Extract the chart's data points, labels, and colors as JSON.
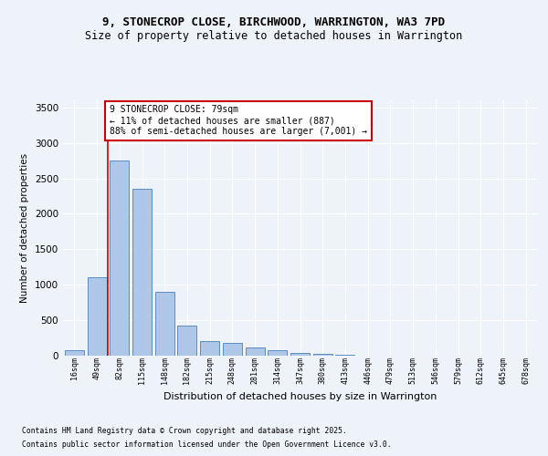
{
  "title1": "9, STONECROP CLOSE, BIRCHWOOD, WARRINGTON, WA3 7PD",
  "title2": "Size of property relative to detached houses in Warrington",
  "xlabel": "Distribution of detached houses by size in Warrington",
  "ylabel": "Number of detached properties",
  "categories": [
    "16sqm",
    "49sqm",
    "82sqm",
    "115sqm",
    "148sqm",
    "182sqm",
    "215sqm",
    "248sqm",
    "281sqm",
    "314sqm",
    "347sqm",
    "380sqm",
    "413sqm",
    "446sqm",
    "479sqm",
    "513sqm",
    "546sqm",
    "579sqm",
    "612sqm",
    "645sqm",
    "678sqm"
  ],
  "values": [
    75,
    1105,
    2750,
    2350,
    900,
    430,
    200,
    175,
    115,
    75,
    40,
    20,
    10,
    5,
    3,
    2,
    1,
    1,
    0,
    0,
    0
  ],
  "bar_color": "#aec6e8",
  "bar_edge_color": "#5b8cbf",
  "vline_color": "#cc0000",
  "vline_x": 1.5,
  "annotation_text": "9 STONECROP CLOSE: 79sqm\n← 11% of detached houses are smaller (887)\n88% of semi-detached houses are larger (7,001) →",
  "annotation_box_color": "#ffffff",
  "annotation_box_edge": "#cc0000",
  "ylim": [
    0,
    3600
  ],
  "yticks": [
    0,
    500,
    1000,
    1500,
    2000,
    2500,
    3000,
    3500
  ],
  "footer1": "Contains HM Land Registry data © Crown copyright and database right 2025.",
  "footer2": "Contains public sector information licensed under the Open Government Licence v3.0.",
  "bg_color": "#eef2f9",
  "plot_bg_color": "#eef2f9",
  "grid_color": "#ffffff",
  "title1_fontsize": 9,
  "title2_fontsize": 8.5
}
